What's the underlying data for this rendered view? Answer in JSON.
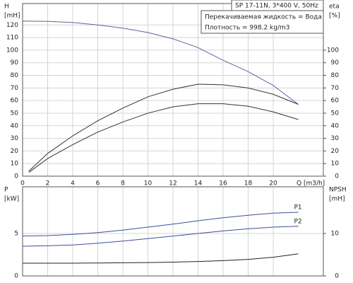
{
  "info": [
    "SP 17-11N, 3*400 V, 50Hz",
    "Перекачиваемая жидкость = Вода",
    "Плотность = 998.2 kg/m3"
  ],
  "chart_data": [
    {
      "type": "line",
      "ylabel": [
        "H",
        "[mH]"
      ],
      "y2label": [
        "eta",
        "[%]"
      ],
      "xlabel": "Q [m3/h]",
      "x": [
        0,
        0.5,
        2,
        4,
        6,
        8,
        10,
        12,
        14,
        16,
        18,
        20,
        22
      ],
      "series": [
        {
          "color": "#5a64a0",
          "values": [
            123,
            123,
            122.8,
            122,
            120,
            117.5,
            114,
            109,
            102,
            92,
            83,
            72,
            57
          ]
        },
        {
          "color": "#333333",
          "axis": "y2",
          "values": [
            null,
            4,
            18,
            32,
            44,
            54,
            63,
            69,
            73,
            72.5,
            70,
            65,
            57
          ]
        },
        {
          "color": "#333333",
          "axis": "y2",
          "values": [
            null,
            3,
            14,
            25,
            35,
            43,
            50,
            55,
            57.5,
            57.5,
            55.5,
            51,
            45
          ]
        }
      ],
      "xlim": [
        0,
        24
      ],
      "xticks": [
        0,
        2,
        4,
        6,
        8,
        10,
        12,
        14,
        16,
        18,
        20
      ],
      "ylim": [
        0,
        137
      ],
      "yticks": [
        0,
        10,
        20,
        30,
        40,
        50,
        60,
        70,
        80,
        90,
        100,
        110,
        120
      ],
      "y2lim": [
        0,
        137
      ],
      "y2ticks": [
        0,
        10,
        20,
        30,
        40,
        50,
        60,
        70,
        80,
        90,
        100
      ],
      "grid": true
    },
    {
      "type": "line",
      "ylabel": [
        "P",
        "[kW]"
      ],
      "y2label": [
        "NPSH",
        "[mH]"
      ],
      "x": [
        0,
        2,
        4,
        6,
        8,
        10,
        12,
        14,
        16,
        18,
        20,
        22
      ],
      "series": [
        {
          "name": "P1",
          "color": "#3a5096",
          "values": [
            4.7,
            4.75,
            4.9,
            5.1,
            5.4,
            5.75,
            6.1,
            6.5,
            6.85,
            7.15,
            7.4,
            7.5
          ]
        },
        {
          "name": "P2",
          "color": "#3a5096",
          "values": [
            3.5,
            3.55,
            3.65,
            3.85,
            4.1,
            4.4,
            4.7,
            5.0,
            5.3,
            5.55,
            5.75,
            5.85
          ]
        },
        {
          "color": "#222222",
          "axis": "y2",
          "values": [
            3.0,
            3.0,
            3.0,
            3.05,
            3.1,
            3.15,
            3.25,
            3.4,
            3.6,
            3.9,
            4.4,
            5.2
          ]
        }
      ],
      "xlim": [
        0,
        24
      ],
      "xticks": [
        0,
        2,
        4,
        6,
        8,
        10,
        12,
        14,
        16,
        18,
        20
      ],
      "ylim": [
        0,
        10.5
      ],
      "yticks": [
        0,
        5
      ],
      "y2lim": [
        0,
        21
      ],
      "y2ticks": [
        0,
        10
      ],
      "grid": true
    }
  ]
}
